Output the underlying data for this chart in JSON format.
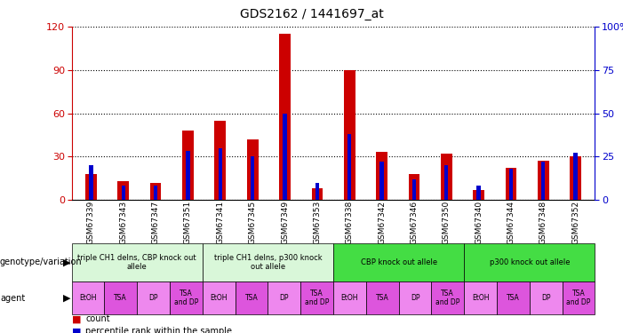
{
  "title": "GDS2162 / 1441697_at",
  "samples": [
    "GSM67339",
    "GSM67343",
    "GSM67347",
    "GSM67351",
    "GSM67341",
    "GSM67345",
    "GSM67349",
    "GSM67353",
    "GSM67338",
    "GSM67342",
    "GSM67346",
    "GSM67350",
    "GSM67340",
    "GSM67344",
    "GSM67348",
    "GSM67352"
  ],
  "count": [
    18,
    13,
    12,
    48,
    55,
    42,
    115,
    8,
    90,
    33,
    18,
    32,
    7,
    22,
    27,
    30
  ],
  "percentile": [
    20,
    8,
    8,
    28,
    30,
    25,
    50,
    10,
    38,
    22,
    12,
    20,
    8,
    18,
    22,
    27
  ],
  "ylim_left": [
    0,
    120
  ],
  "ylim_right": [
    0,
    100
  ],
  "yticks_left": [
    0,
    30,
    60,
    90,
    120
  ],
  "yticks_right": [
    0,
    25,
    50,
    75,
    100
  ],
  "genotype_groups": [
    {
      "label": "triple CH1 delns, CBP knock out\nallele",
      "start": 0,
      "end": 4,
      "color": "#d9f7d9"
    },
    {
      "label": "triple CH1 delns, p300 knock\nout allele",
      "start": 4,
      "end": 8,
      "color": "#d9f7d9"
    },
    {
      "label": "CBP knock out allele",
      "start": 8,
      "end": 12,
      "color": "#44dd44"
    },
    {
      "label": "p300 knock out allele",
      "start": 12,
      "end": 16,
      "color": "#44dd44"
    }
  ],
  "agent_labels": [
    "EtOH",
    "TSA",
    "DP",
    "TSA\nand DP",
    "EtOH",
    "TSA",
    "DP",
    "TSA\nand DP",
    "EtOH",
    "TSA",
    "DP",
    "TSA\nand DP",
    "EtOH",
    "TSA",
    "DP",
    "TSA\nand DP"
  ],
  "agent_colors_cycle": [
    "#ee88ee",
    "#dd55dd",
    "#ee88ee",
    "#dd55dd"
  ],
  "bar_color": "#cc0000",
  "percentile_color": "#0000cc",
  "background_color": "#ffffff",
  "left_axis_color": "#cc0000",
  "right_axis_color": "#0000cc",
  "xticklabel_bg": "#cccccc",
  "bar_width": 0.35,
  "pct_bar_width": 0.12
}
